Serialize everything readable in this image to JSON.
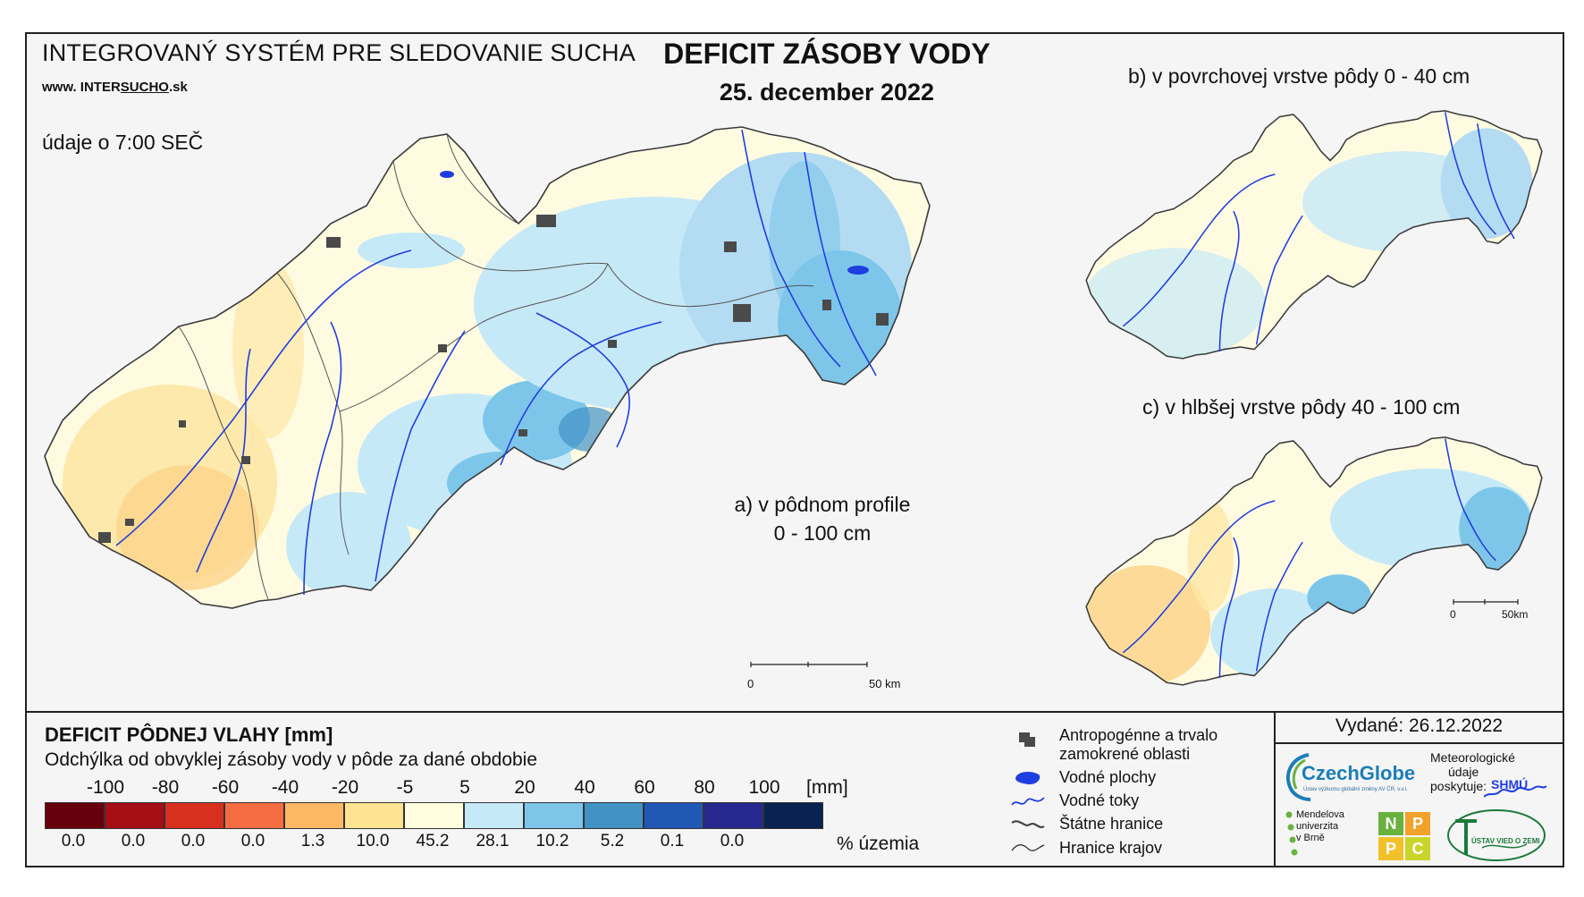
{
  "header": {
    "system_title": "INTEGROVANÝ SYSTÉM PRE SLEDOVANIE SUCHA",
    "url_prefix": "www.",
    "url_inter": "INTER",
    "url_sucho": "SUCHO",
    "url_suffix": ".sk",
    "time_note": "údaje o 7:00 SEČ",
    "main_title": "DEFICIT ZÁSOBY VODY",
    "date": "25. december 2022"
  },
  "maps": {
    "a_line1": "a) v pôdnom profile",
    "a_line2": "0 - 100 cm",
    "b_label": "b) v povrchovej vrstve pôdy 0 - 40 cm",
    "c_label": "c) v hlbšej vrstve pôdy 40 - 100 cm",
    "scale_main": {
      "start": "0",
      "end": "50 km"
    },
    "scale_small": {
      "start": "0",
      "end": "50km"
    }
  },
  "legend": {
    "title": "DEFICIT PÔDNEJ VLAHY [mm]",
    "subtitle": "Odchýlka od obvyklej zásoby vody v pôde za dané obdobie",
    "unit": "[mm]",
    "percent_unit": "% územia",
    "thresholds": [
      "-100",
      "-80",
      "-60",
      "-40",
      "-20",
      "-5",
      "5",
      "20",
      "40",
      "60",
      "80",
      "100"
    ],
    "classes": [
      {
        "color": "#67000d",
        "percent": "0.0"
      },
      {
        "color": "#a50f15",
        "percent": "0.0"
      },
      {
        "color": "#d7301f",
        "percent": "0.0"
      },
      {
        "color": "#f46d43",
        "percent": "0.0"
      },
      {
        "color": "#fdb863",
        "percent": "1.3"
      },
      {
        "color": "#fee391",
        "percent": "10.0"
      },
      {
        "color": "#ffffe0",
        "percent": "45.2"
      },
      {
        "color": "#c6e9f7",
        "percent": "28.1"
      },
      {
        "color": "#7dc6ea",
        "percent": "10.2"
      },
      {
        "color": "#4292c6",
        "percent": "5.2"
      },
      {
        "color": "#2158b6",
        "percent": "0.1"
      },
      {
        "color": "#27288f",
        "percent": "0.0"
      },
      {
        "color": "#08234f",
        "percent": ""
      }
    ]
  },
  "symbols": [
    {
      "icon": "urban-area-icon",
      "line1": "Antropogénne a trvalo",
      "line2": "zamokrené oblasti"
    },
    {
      "icon": "water-body-icon",
      "line1": "Vodné plochy",
      "line2": ""
    },
    {
      "icon": "river-icon",
      "line1": "Vodné toky",
      "line2": ""
    },
    {
      "icon": "state-border-icon",
      "line1": "Štátne hranice",
      "line2": ""
    },
    {
      "icon": "region-border-icon",
      "line1": "Hranice krajov",
      "line2": ""
    }
  ],
  "issued": "Vydané: 26.12.2022",
  "logos": {
    "czechglobe": "CzechGlobe",
    "czechglobe_sub": "Ústav výzkumu globální změny AV ČR, v.v.i.",
    "meteo_line1": "Meteorologické",
    "meteo_line2": "údaje",
    "meteo_line3": "poskytuje:",
    "shmu": "SHMÚ",
    "mendel_line1": "Mendelova",
    "mendel_line2": "univerzita",
    "mendel_line3": "v Brně",
    "nppc": [
      "N",
      "P",
      "P",
      "C"
    ],
    "uvz": "ÚSTAV VIED O ZEMI"
  }
}
